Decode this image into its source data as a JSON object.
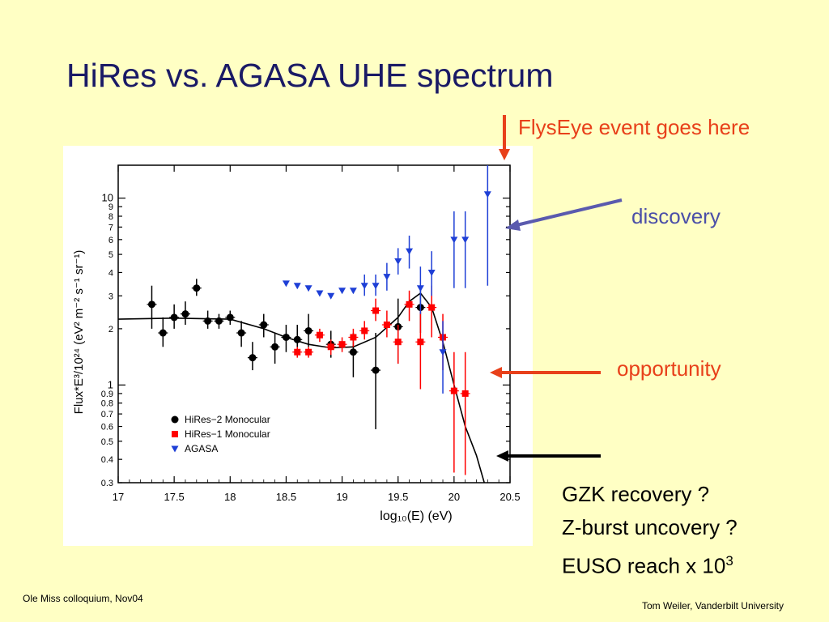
{
  "slide": {
    "title": "HiRes vs. AGASA UHE spectrum",
    "annotations": {
      "flyseye": "FlysEye event goes here",
      "discovery": "discovery",
      "opportunity": "opportunity"
    },
    "notes": {
      "line1": "GZK recovery ?",
      "line2": "Z-burst uncovery ?",
      "line3_prefix": "EUSO reach x 10",
      "line3_exp": "3"
    },
    "footer_left": "Ole Miss colloquium, Nov04",
    "footer_right": "Tom Weiler, Vanderbilt University",
    "colors": {
      "title": "#1A1A66",
      "flyseye_arrow": "#E8401A",
      "discovery_arrow": "#5A5AAE",
      "opportunity_arrow": "#E8401A",
      "gzk_arrow": "#000000"
    }
  },
  "chart_data": {
    "type": "scatter",
    "xlabel": "log₁₀(E) (eV)",
    "ylabel": "Flux*E³/10²⁴ (eV² m⁻² s⁻¹ sr⁻¹)",
    "xlim": [
      17,
      20.5
    ],
    "ylim": [
      0.3,
      15
    ],
    "yscale": "log",
    "xticks": [
      17,
      17.5,
      18,
      18.5,
      19,
      19.5,
      20,
      20.5
    ],
    "xtick_labels": [
      "17",
      "17.5",
      "18",
      "18.5",
      "19",
      "19.5",
      "20",
      "20.5"
    ],
    "yticks": [
      0.3,
      0.4,
      0.5,
      0.6,
      0.7,
      0.8,
      0.9,
      1,
      2,
      3,
      4,
      5,
      6,
      7,
      8,
      9,
      10
    ],
    "ytick_labels": [
      "0.3",
      "0.4",
      "0.5",
      "0.6",
      "0.7",
      "0.8",
      "0.9",
      "1",
      "2",
      "3",
      "4",
      "5",
      "6",
      "7",
      "8",
      "9",
      "10"
    ],
    "legend_position": "bottom-left",
    "series": [
      {
        "name": "HiRes−2 Monocular",
        "marker": "circle",
        "color": "#000000",
        "points": [
          {
            "x": 17.3,
            "y": 2.7,
            "ylo": 2.0,
            "yhi": 3.4
          },
          {
            "x": 17.4,
            "y": 1.9,
            "ylo": 1.6,
            "yhi": 2.3
          },
          {
            "x": 17.5,
            "y": 2.3,
            "ylo": 2.0,
            "yhi": 2.7
          },
          {
            "x": 17.6,
            "y": 2.4,
            "ylo": 2.1,
            "yhi": 2.8
          },
          {
            "x": 17.7,
            "y": 3.3,
            "ylo": 3.0,
            "yhi": 3.7
          },
          {
            "x": 17.8,
            "y": 2.2,
            "ylo": 2.0,
            "yhi": 2.5
          },
          {
            "x": 17.9,
            "y": 2.2,
            "ylo": 2.0,
            "yhi": 2.4
          },
          {
            "x": 18.0,
            "y": 2.3,
            "ylo": 2.1,
            "yhi": 2.5
          },
          {
            "x": 18.1,
            "y": 1.9,
            "ylo": 1.6,
            "yhi": 2.2
          },
          {
            "x": 18.2,
            "y": 1.4,
            "ylo": 1.2,
            "yhi": 1.7
          },
          {
            "x": 18.3,
            "y": 2.1,
            "ylo": 1.8,
            "yhi": 2.4
          },
          {
            "x": 18.4,
            "y": 1.6,
            "ylo": 1.3,
            "yhi": 1.9
          },
          {
            "x": 18.5,
            "y": 1.8,
            "ylo": 1.5,
            "yhi": 2.1
          },
          {
            "x": 18.6,
            "y": 1.75,
            "ylo": 1.45,
            "yhi": 2.1
          },
          {
            "x": 18.7,
            "y": 1.95,
            "ylo": 1.6,
            "yhi": 2.4
          },
          {
            "x": 18.9,
            "y": 1.65,
            "ylo": 1.4,
            "yhi": 1.95
          },
          {
            "x": 19.1,
            "y": 1.5,
            "ylo": 1.1,
            "yhi": 1.9
          },
          {
            "x": 19.3,
            "y": 1.2,
            "ylo": 0.58,
            "yhi": 1.9
          },
          {
            "x": 19.5,
            "y": 2.05,
            "ylo": 1.3,
            "yhi": 2.9
          },
          {
            "x": 19.7,
            "y": 2.6,
            "ylo": 1.9,
            "yhi": 3.3
          }
        ]
      },
      {
        "name": "HiRes−1 Monocular",
        "marker": "square",
        "color": "#FF0000",
        "points": [
          {
            "x": 18.6,
            "y": 1.5,
            "ylo": 1.4,
            "yhi": 1.6
          },
          {
            "x": 18.7,
            "y": 1.5,
            "ylo": 1.4,
            "yhi": 1.6
          },
          {
            "x": 18.8,
            "y": 1.85,
            "ylo": 1.7,
            "yhi": 2.0
          },
          {
            "x": 18.9,
            "y": 1.6,
            "ylo": 1.45,
            "yhi": 1.75
          },
          {
            "x": 19.0,
            "y": 1.65,
            "ylo": 1.5,
            "yhi": 1.8
          },
          {
            "x": 19.1,
            "y": 1.8,
            "ylo": 1.6,
            "yhi": 2.0
          },
          {
            "x": 19.2,
            "y": 1.95,
            "ylo": 1.75,
            "yhi": 2.2
          },
          {
            "x": 19.3,
            "y": 2.5,
            "ylo": 2.2,
            "yhi": 2.9
          },
          {
            "x": 19.4,
            "y": 2.1,
            "ylo": 1.8,
            "yhi": 2.5
          },
          {
            "x": 19.5,
            "y": 1.7,
            "ylo": 1.3,
            "yhi": 2.1
          },
          {
            "x": 19.6,
            "y": 2.7,
            "ylo": 2.2,
            "yhi": 3.2
          },
          {
            "x": 19.7,
            "y": 1.7,
            "ylo": 0.95,
            "yhi": 2.5
          },
          {
            "x": 19.8,
            "y": 2.6,
            "ylo": 1.8,
            "yhi": 3.4
          },
          {
            "x": 19.9,
            "y": 1.8,
            "ylo": 1.2,
            "yhi": 2.4
          },
          {
            "x": 20.0,
            "y": 0.93,
            "ylo": 0.34,
            "yhi": 1.5
          },
          {
            "x": 20.1,
            "y": 0.9,
            "ylo": 0.33,
            "yhi": 1.5
          }
        ]
      },
      {
        "name": "AGASA",
        "marker": "triangle-down",
        "color": "#1E3FD6",
        "points": [
          {
            "x": 18.5,
            "y": 3.5
          },
          {
            "x": 18.6,
            "y": 3.4
          },
          {
            "x": 18.7,
            "y": 3.3
          },
          {
            "x": 18.8,
            "y": 3.1
          },
          {
            "x": 18.9,
            "y": 3.0
          },
          {
            "x": 19.0,
            "y": 3.2
          },
          {
            "x": 19.1,
            "y": 3.2
          },
          {
            "x": 19.2,
            "y": 3.4,
            "ylo": 3.0,
            "yhi": 3.9
          },
          {
            "x": 19.3,
            "y": 3.4,
            "ylo": 3.0,
            "yhi": 3.9
          },
          {
            "x": 19.4,
            "y": 3.8,
            "ylo": 3.2,
            "yhi": 4.5
          },
          {
            "x": 19.5,
            "y": 4.6,
            "ylo": 3.9,
            "yhi": 5.4
          },
          {
            "x": 19.6,
            "y": 5.2,
            "ylo": 4.2,
            "yhi": 6.3
          },
          {
            "x": 19.7,
            "y": 3.3,
            "ylo": 2.4,
            "yhi": 4.3
          },
          {
            "x": 19.8,
            "y": 4.0,
            "ylo": 3.0,
            "yhi": 5.2
          },
          {
            "x": 19.9,
            "y": 1.5,
            "ylo": 0.9,
            "yhi": 2.2
          },
          {
            "x": 20.0,
            "y": 6.0,
            "ylo": 3.3,
            "yhi": 8.5
          },
          {
            "x": 20.1,
            "y": 6.0,
            "ylo": 3.3,
            "yhi": 8.5
          },
          {
            "x": 20.3,
            "y": 10.5,
            "ylo": 3.4,
            "yhi": 15
          }
        ]
      }
    ],
    "model_curve": {
      "color": "#000000",
      "points": [
        [
          17.0,
          2.25
        ],
        [
          17.5,
          2.28
        ],
        [
          18.0,
          2.25
        ],
        [
          18.3,
          2.0
        ],
        [
          18.5,
          1.8
        ],
        [
          18.7,
          1.65
        ],
        [
          18.9,
          1.58
        ],
        [
          19.1,
          1.6
        ],
        [
          19.3,
          1.8
        ],
        [
          19.5,
          2.3
        ],
        [
          19.6,
          2.8
        ],
        [
          19.7,
          3.1
        ],
        [
          19.8,
          2.6
        ],
        [
          19.9,
          1.7
        ],
        [
          20.0,
          1.0
        ],
        [
          20.1,
          0.6
        ],
        [
          20.2,
          0.42
        ],
        [
          20.27,
          0.3
        ]
      ]
    }
  }
}
